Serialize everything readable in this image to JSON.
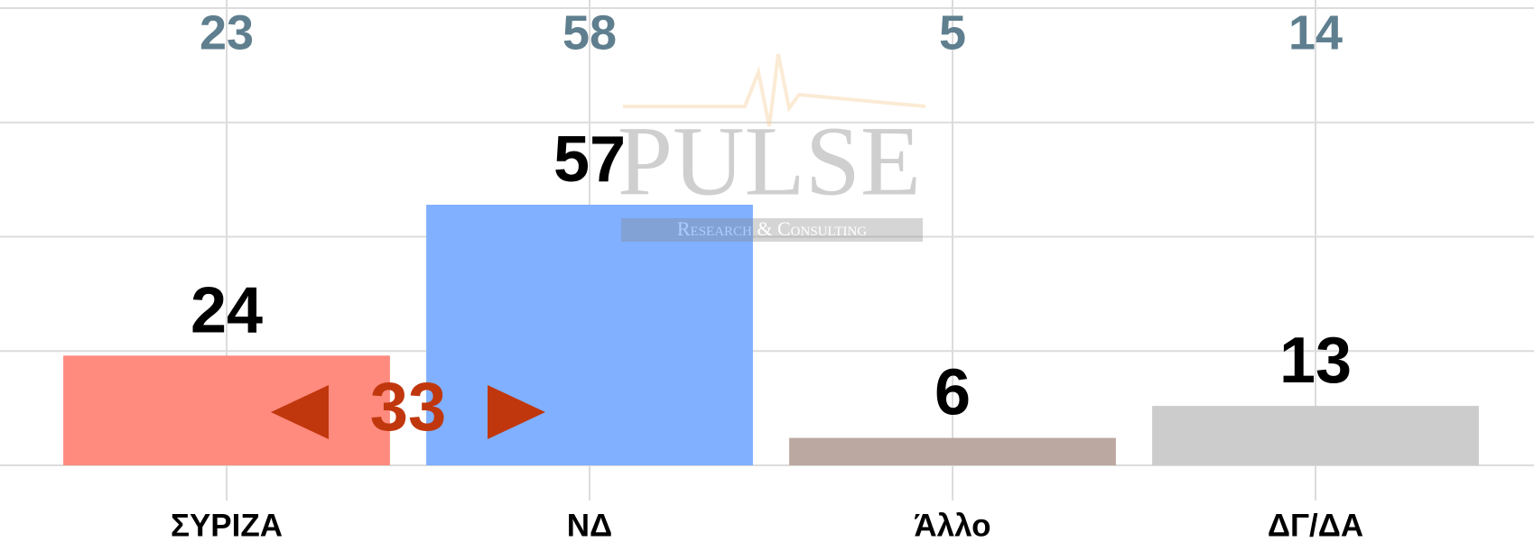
{
  "chart_data": {
    "type": "bar",
    "categories": [
      "ΣΥΡΙΖΑ",
      "ΝΔ",
      "Άλλο",
      "ΔΓ/ΔΑ"
    ],
    "values": [
      24,
      57,
      6,
      13
    ],
    "colors": [
      "#ff8a7e",
      "#80b0ff",
      "#bba8a0",
      "#cccccc"
    ],
    "comparison_values": [
      23,
      58,
      5,
      14
    ],
    "annotation": "33",
    "ylim": [
      0,
      100
    ],
    "yticks": [
      0,
      25,
      50,
      75,
      100
    ],
    "grid": true,
    "watermark": {
      "title": "PULSE",
      "subtitle": "Research & Consulting"
    }
  }
}
